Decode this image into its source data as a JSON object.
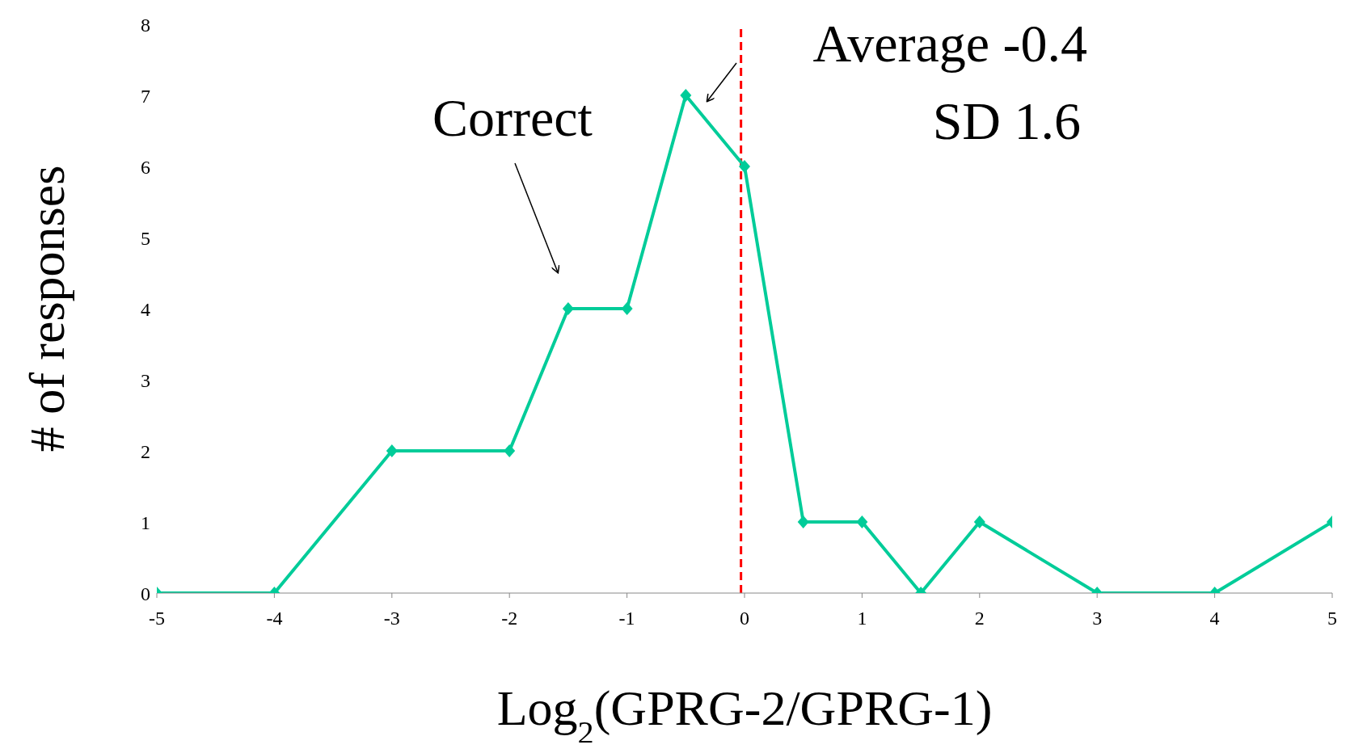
{
  "chart_data": {
    "type": "line",
    "xlabel": "Log$_{2}$(GPRG-2/GPRG-1)",
    "ylabel": "# of responses",
    "x": [
      -5,
      -4,
      -3,
      -2,
      -1.5,
      -1,
      -0.5,
      0,
      0.5,
      1,
      1.5,
      2,
      3,
      4,
      5
    ],
    "series": [
      {
        "color": "#00cc99",
        "values": [
          0,
          0,
          2,
          2,
          4,
          4,
          7,
          6,
          1,
          1,
          0,
          1,
          0,
          0,
          1
        ]
      }
    ],
    "xlim": [
      -5,
      5
    ],
    "xticks": [
      -5,
      -4,
      -3,
      -2,
      -1,
      0,
      1,
      2,
      3,
      4,
      5
    ],
    "ylim": [
      0,
      8
    ],
    "yticks": [
      0,
      1,
      2,
      3,
      4,
      5,
      6,
      7,
      8
    ],
    "ref_lines": [
      {
        "axis": "x",
        "value": -0.03,
        "color": "#ff0000",
        "line_style": "dashed"
      }
    ],
    "annotations": [
      "Correct",
      "Average -0.4",
      "SD 1.6"
    ],
    "marker": "diamond",
    "line_style": "solid",
    "grid": false,
    "legend": false
  }
}
